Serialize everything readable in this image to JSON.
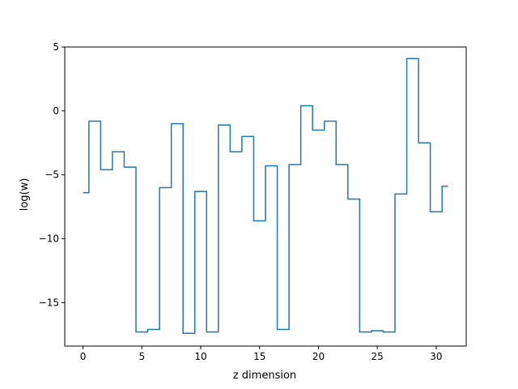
{
  "chart_data": {
    "type": "line",
    "drawstyle": "steps-mid",
    "title": "",
    "xlabel": "z dimension",
    "ylabel": "log(w)",
    "xlim": [
      -1.55,
      32.55
    ],
    "ylim": [
      -18.4,
      5.0
    ],
    "xticks": [
      0,
      5,
      10,
      15,
      20,
      25,
      30
    ],
    "yticks": [
      5,
      0,
      -5,
      -10,
      -15
    ],
    "ytick_labels": [
      "5",
      "0",
      "−5",
      "−10",
      "−15"
    ],
    "grid": false,
    "legend": "none",
    "line_color": "#1f77b4",
    "series": [
      {
        "x": [
          0,
          1,
          2,
          3,
          4,
          5,
          6,
          7,
          8,
          9,
          10,
          11,
          12,
          13,
          14,
          15,
          16,
          17,
          18,
          19,
          20,
          21,
          22,
          23,
          24,
          25,
          26,
          27,
          28,
          29,
          30,
          31
        ],
        "values": [
          -6.4,
          -0.8,
          -4.6,
          -3.2,
          -4.4,
          -17.3,
          -17.1,
          -6.0,
          -1.0,
          -17.4,
          -6.3,
          -17.3,
          -1.1,
          -3.2,
          -2.0,
          -8.6,
          -4.3,
          -17.1,
          -4.2,
          0.4,
          -1.5,
          -0.8,
          -4.2,
          -6.9,
          -17.3,
          -17.2,
          -17.3,
          -6.5,
          4.1,
          -2.5,
          -7.9,
          -5.9
        ]
      }
    ]
  }
}
